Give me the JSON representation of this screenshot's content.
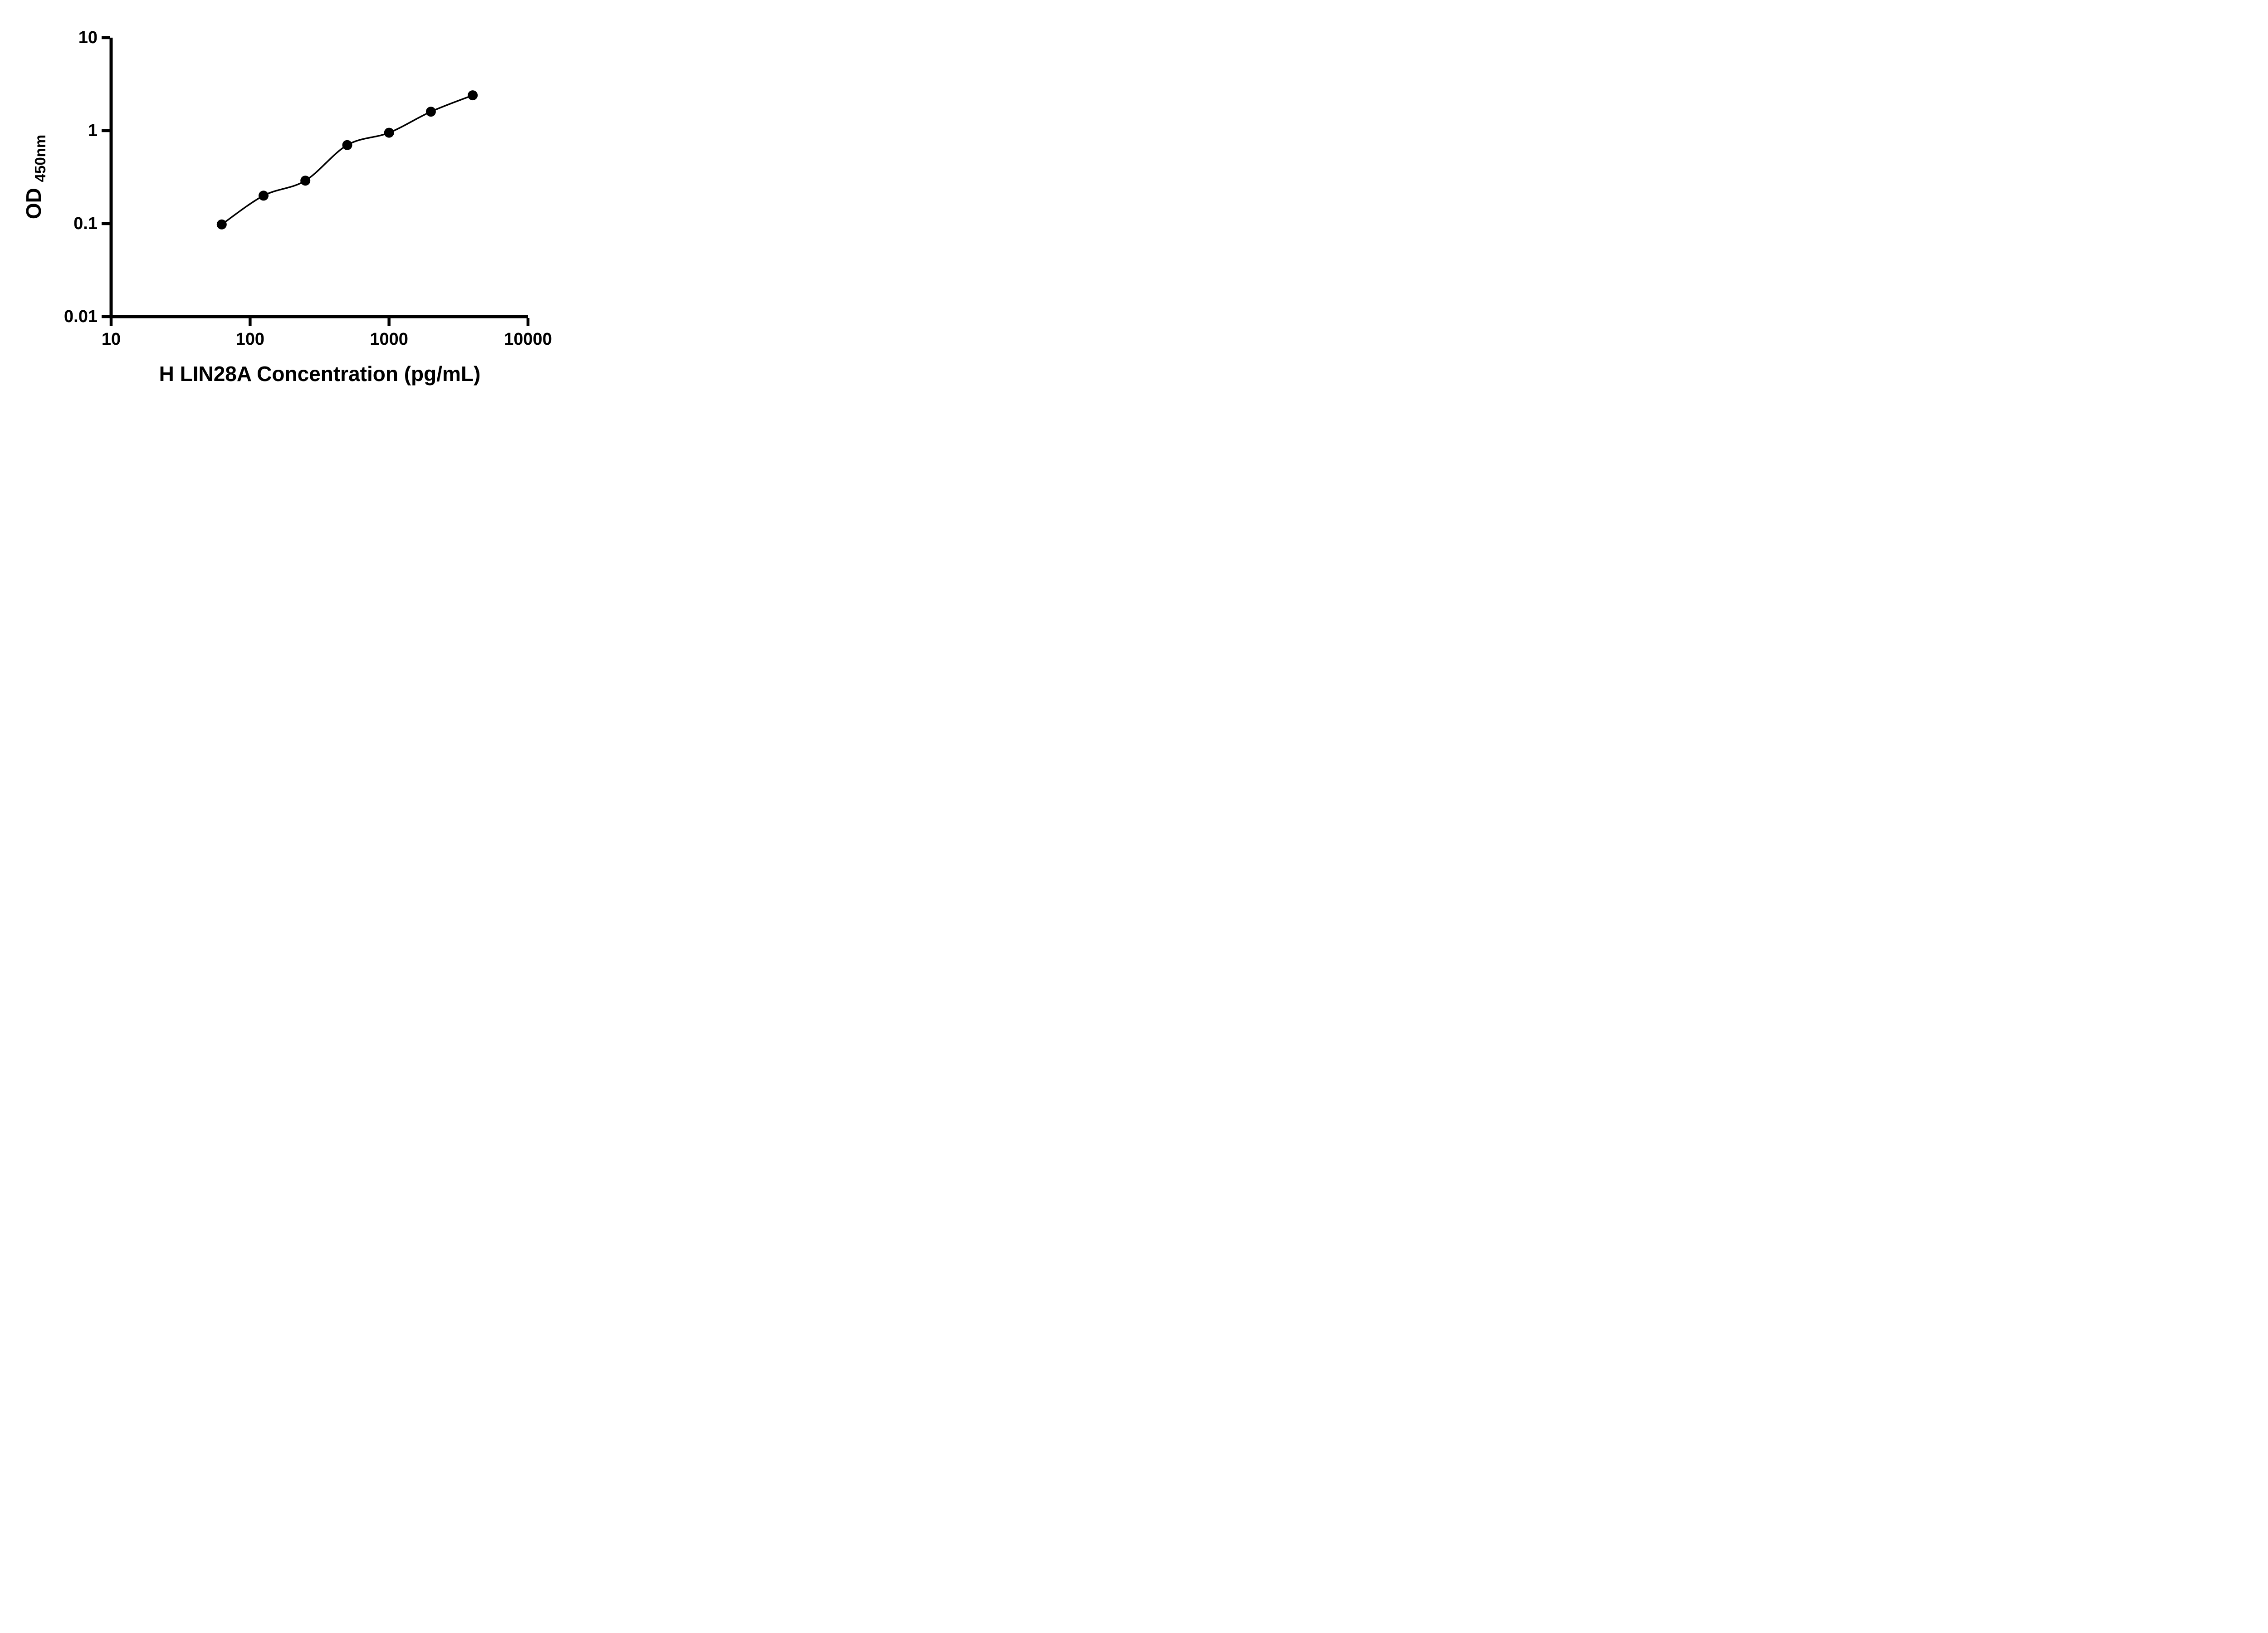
{
  "figure": {
    "background_color": "#ffffff",
    "foreground_color": "#000000"
  },
  "chart_data": {
    "type": "scatter",
    "title": "",
    "xlabel": "H LIN28A Concentration (pg/mL)",
    "ylabel_main": "OD",
    "ylabel_sub": "450nm",
    "x_scale": "log",
    "y_scale": "log",
    "xlim": [
      10,
      10000
    ],
    "ylim": [
      0.01,
      10
    ],
    "x_ticks": [
      10,
      100,
      1000,
      10000
    ],
    "x_tick_labels": [
      "10",
      "100",
      "1000",
      "10000"
    ],
    "y_ticks": [
      0.01,
      0.1,
      1,
      10
    ],
    "y_tick_labels": [
      "0.01",
      "0.1",
      "1",
      "10"
    ],
    "grid": false,
    "legend": false,
    "marker": "circle",
    "point_color": "#000000",
    "line_color": "#000000",
    "x": [
      62.5,
      125,
      250,
      500,
      1000,
      2000,
      4000
    ],
    "y": [
      0.098,
      0.2,
      0.29,
      0.7,
      0.95,
      1.6,
      2.4
    ]
  }
}
